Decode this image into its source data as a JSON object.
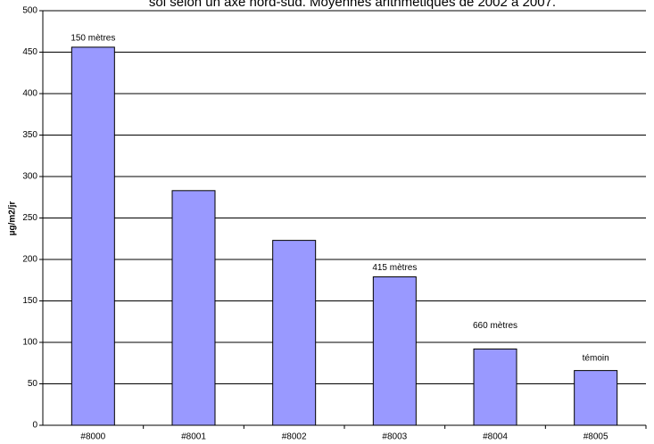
{
  "chart_data": {
    "type": "bar",
    "title": "sol selon un axe nord-sud. Moyennes arithmétiques de 2002 à 2007.",
    "y_label": "µg/m2/jr",
    "categories": [
      "#8000",
      "#8001",
      "#8002",
      "#8003",
      "#8004",
      "#8005"
    ],
    "values": [
      456,
      283,
      223,
      179,
      92,
      66
    ],
    "color": "#9999ff",
    "ylim": [
      0,
      500
    ],
    "yticks": [
      0,
      50,
      100,
      150,
      200,
      250,
      300,
      350,
      400,
      450,
      500
    ],
    "grid": true,
    "annotations": [
      {
        "text": "150 mètres",
        "category": "#8000"
      },
      {
        "text": "415 mètres",
        "category": "#8003"
      },
      {
        "text": "660 mètres",
        "category": "#8004"
      },
      {
        "text": "témoin",
        "category": "#8005"
      }
    ]
  }
}
